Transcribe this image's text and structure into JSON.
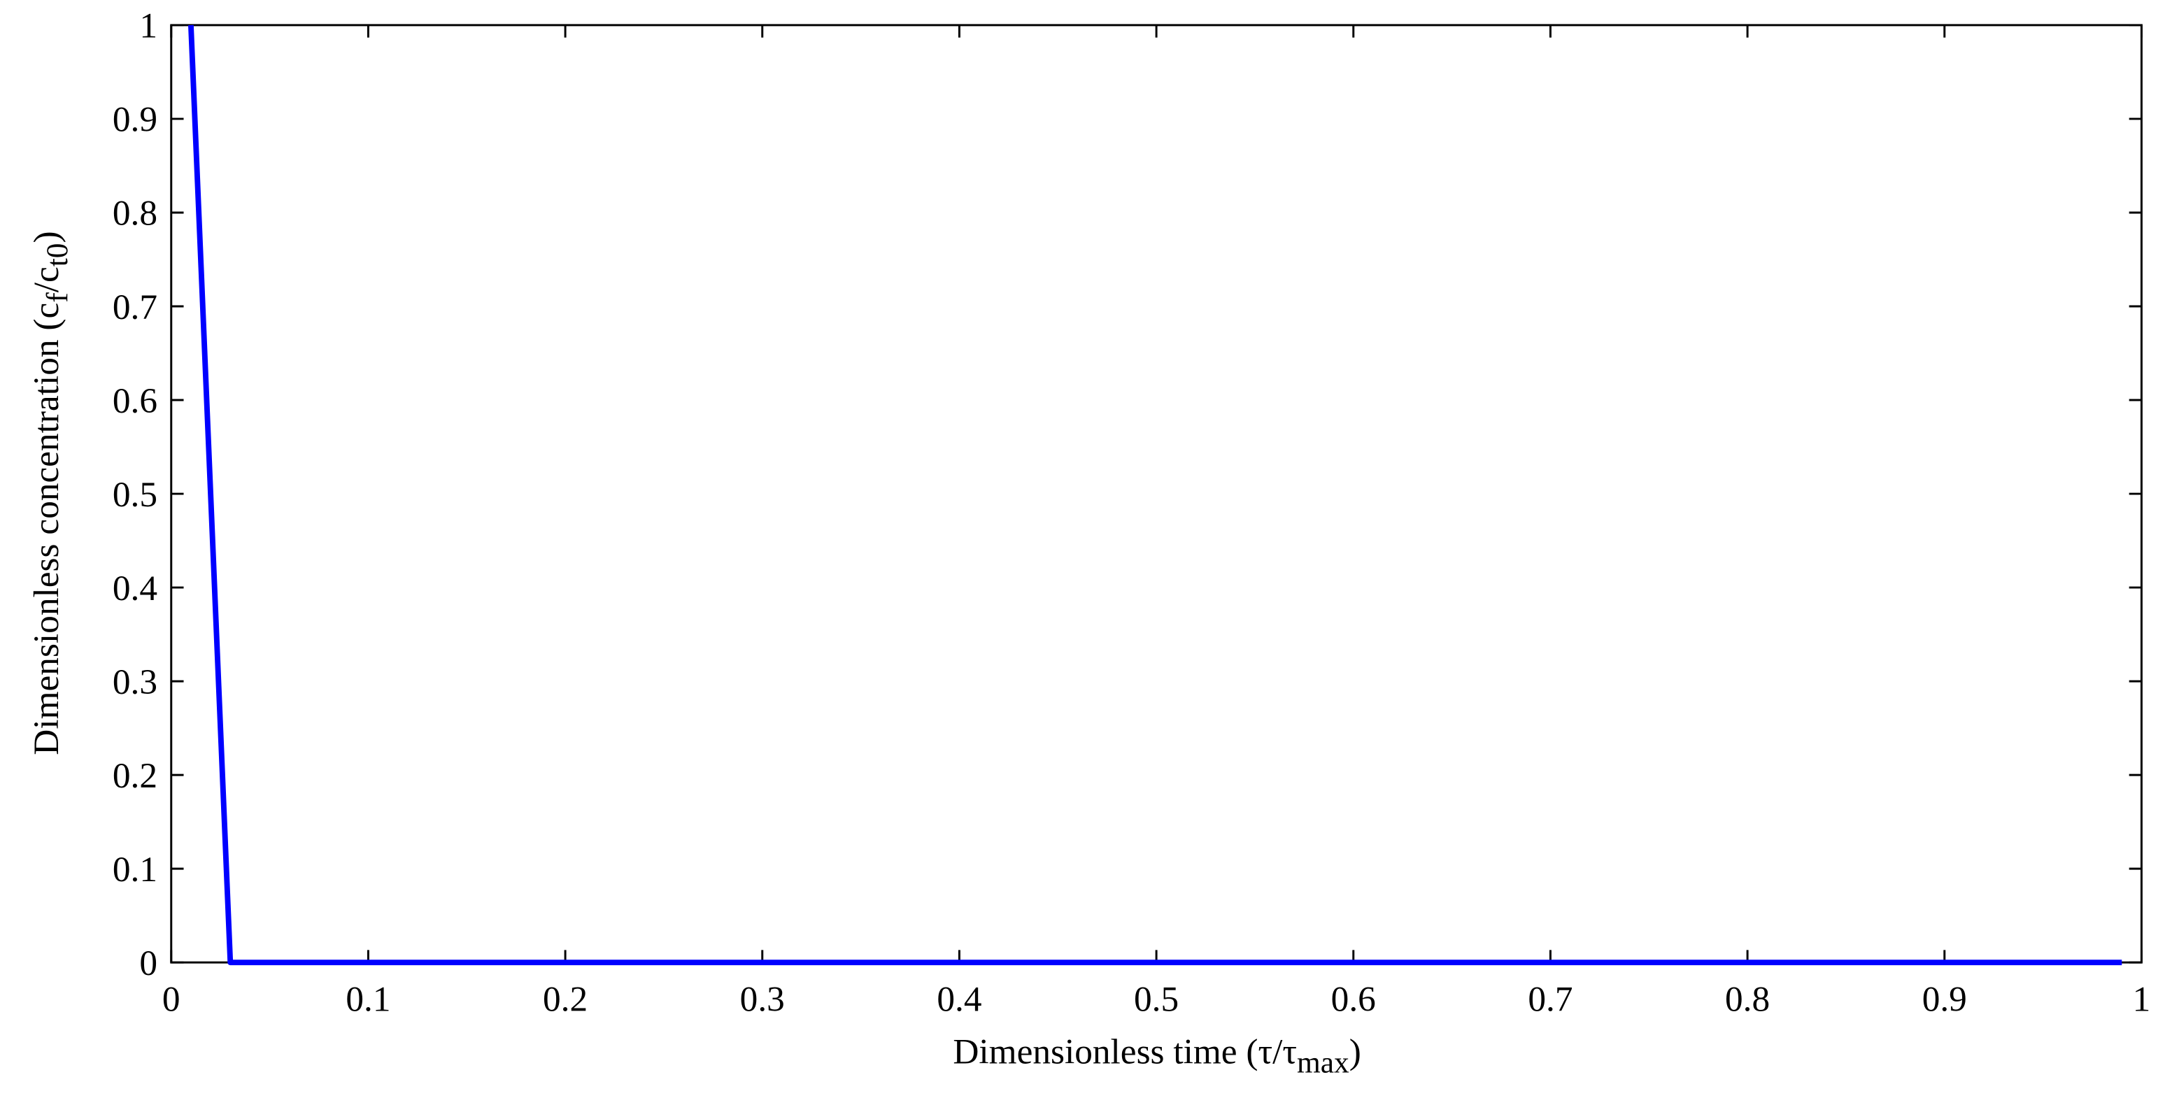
{
  "chart_data": {
    "type": "line",
    "xlabel": [
      "Dimensionless time (τ/τ",
      "max",
      ")"
    ],
    "ylabel": [
      "Dimensionless concentration (c",
      "f",
      "/c",
      "t0",
      ")"
    ],
    "x": [
      0.01,
      0.03,
      0.99
    ],
    "series": [
      {
        "color": "#0000ff",
        "values": [
          1,
          0,
          0
        ]
      }
    ],
    "xlim": [
      0,
      1
    ],
    "ylim": [
      0,
      1
    ],
    "xticks": [
      0,
      0.1,
      0.2,
      0.3,
      0.4,
      0.5,
      0.6,
      0.7,
      0.8,
      0.9,
      1
    ],
    "yticks": [
      0,
      0.1,
      0.2,
      0.3,
      0.4,
      0.5,
      0.6,
      0.7,
      0.8,
      0.9,
      1
    ],
    "grid": false
  }
}
